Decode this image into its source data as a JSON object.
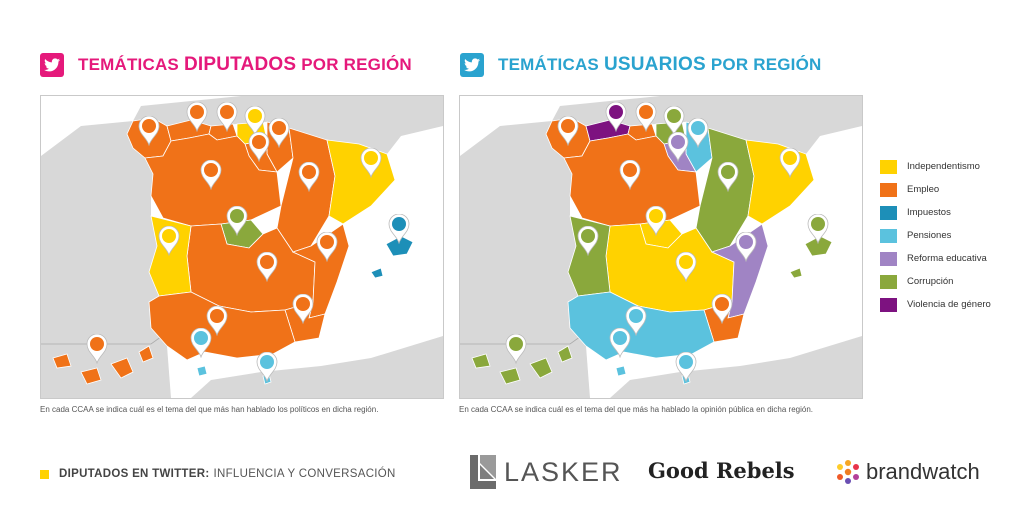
{
  "left_panel": {
    "title_pre": "TEMÁTICAS",
    "title_big": "DIPUTADOS",
    "title_post": "POR REGIÓN",
    "note": "En cada CCAA se indica cuál es el tema del que más han hablado los políticos en dicha región."
  },
  "right_panel": {
    "title_pre": "TEMÁTICAS",
    "title_big": "USUARIOS",
    "title_post": "POR REGIÓN",
    "note": "En cada CCAA se indica cuál es el tema del que más ha hablado la opinión pública en dicha región."
  },
  "legend": [
    {
      "label": "Independentismo",
      "color": "#ffd200"
    },
    {
      "label": "Empleo",
      "color": "#f07218"
    },
    {
      "label": "Impuestos",
      "color": "#1d8fb8"
    },
    {
      "label": "Pensiones",
      "color": "#5bc2de"
    },
    {
      "label": "Reforma educativa",
      "color": "#a084c4"
    },
    {
      "label": "Corrupción",
      "color": "#8aa83c"
    },
    {
      "label": "Violencia de género",
      "color": "#7d1280"
    }
  ],
  "colors": {
    "land_bg": "#d8d8d8",
    "sea": "#ffffff",
    "twitter_pink": "#e5197b",
    "twitter_blue": "#2aa3cf"
  },
  "footer": {
    "bold": "DIPUTADOS EN TWITTER:",
    "rest": "INFLUENCIA Y CONVERSACIÓN"
  },
  "logos": {
    "lasker": "LASKER",
    "goodrebels": "Good Rebels",
    "brandwatch": "brandwatch"
  },
  "regions_diputados": {
    "galicia": "Empleo",
    "asturias": "Empleo",
    "cantabria": "Empleo",
    "pais_vasco": "Independentismo",
    "navarra": "Empleo",
    "la_rioja": "Empleo",
    "aragon": "Empleo",
    "cataluna": "Independentismo",
    "castilla_leon": "Empleo",
    "madrid": "Corrupción",
    "castilla_la_mancha": "Empleo",
    "extremadura": "Independentismo",
    "valencia": "Empleo",
    "murcia": "Empleo",
    "andalucia": "Empleo",
    "baleares": "Impuestos",
    "canarias": "Empleo",
    "ceuta": "Pensiones",
    "melilla": "Pensiones"
  },
  "regions_usuarios": {
    "galicia": "Empleo",
    "asturias": "Violencia de género",
    "cantabria": "Empleo",
    "pais_vasco": "Corrupción",
    "navarra": "Pensiones",
    "la_rioja": "Reforma educativa",
    "aragon": "Corrupción",
    "cataluna": "Independentismo",
    "castilla_leon": "Empleo",
    "madrid": "Independentismo",
    "castilla_la_mancha": "Independentismo",
    "extremadura": "Corrupción",
    "valencia": "Reforma educativa",
    "murcia": "Empleo",
    "andalucia": "Pensiones",
    "baleares": "Corrupción",
    "canarias": "Corrupción",
    "ceuta": "Pensiones",
    "melilla": "Pensiones"
  }
}
